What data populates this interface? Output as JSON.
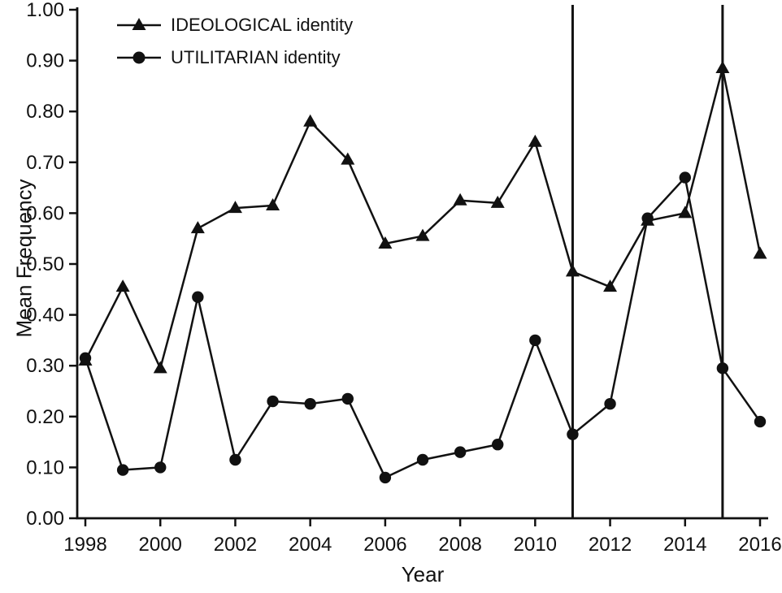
{
  "chart_data": {
    "type": "line",
    "x": [
      1998,
      1999,
      2000,
      2001,
      2002,
      2003,
      2004,
      2005,
      2006,
      2007,
      2008,
      2009,
      2010,
      2011,
      2012,
      2013,
      2014,
      2015,
      2016
    ],
    "series": [
      {
        "name": "IDEOLOGICAL identity",
        "marker": "triangle",
        "values": [
          0.31,
          0.455,
          0.295,
          0.57,
          0.61,
          0.615,
          0.78,
          0.705,
          0.54,
          0.555,
          0.625,
          0.62,
          0.74,
          0.485,
          0.455,
          0.585,
          0.6,
          0.885,
          0.52
        ]
      },
      {
        "name": "UTILITARIAN identity",
        "marker": "circle",
        "values": [
          0.315,
          0.095,
          0.1,
          0.435,
          0.115,
          0.23,
          0.225,
          0.235,
          0.08,
          0.115,
          0.13,
          0.145,
          0.35,
          0.165,
          0.225,
          0.59,
          0.67,
          0.295,
          0.19
        ]
      }
    ],
    "title": "",
    "xlabel": "Year",
    "ylabel": "Mean Frequency",
    "xlim": [
      1998,
      2016
    ],
    "ylim": [
      0,
      1
    ],
    "y_ticks": [
      0,
      0.1,
      0.2,
      0.3,
      0.4,
      0.5,
      0.6,
      0.7,
      0.8,
      0.9,
      1.0
    ],
    "y_tick_decimals": 2,
    "x_tick_labels": [
      1998,
      2000,
      2002,
      2004,
      2006,
      2008,
      2010,
      2012,
      2014,
      2016
    ],
    "vlines": [
      2011,
      2015
    ],
    "grid": false,
    "legend_position": "top-left",
    "line_color": "#111111"
  }
}
